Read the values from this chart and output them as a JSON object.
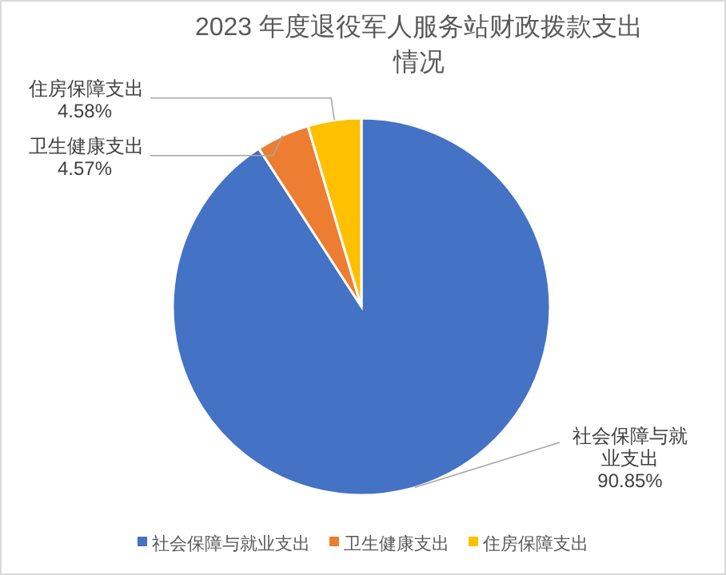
{
  "chart_data": {
    "type": "pie",
    "title": "2023 年度退役军人服务站财政拨款支出情况",
    "categories": [
      "社会保障与就业支出",
      "卫生健康支出",
      "住房保障支出"
    ],
    "values": [
      90.85,
      4.57,
      4.58
    ],
    "colors": [
      "#4472c4",
      "#ed7d31",
      "#ffc000"
    ],
    "value_labels": [
      "90.85%",
      "4.57%",
      "4.58%"
    ],
    "legend": "bottom"
  }
}
